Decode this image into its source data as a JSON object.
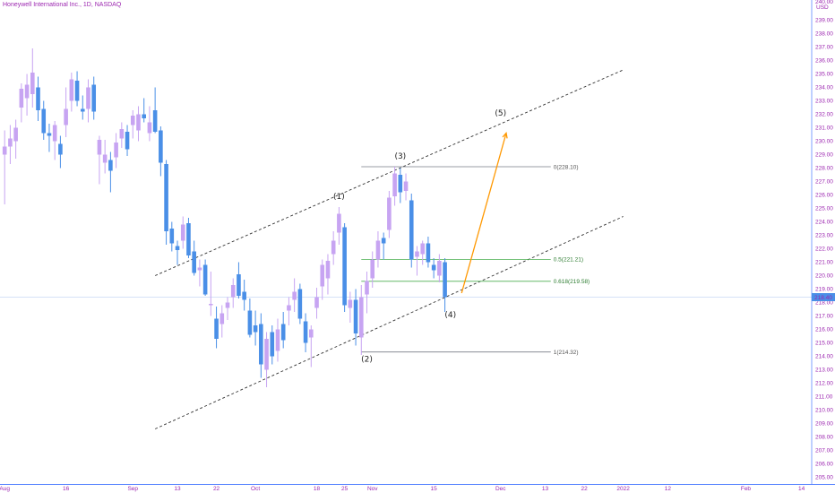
{
  "header": {
    "title": "Honeywell International Inc., 1D, NASDAQ"
  },
  "chart_data": {
    "type": "candlestick",
    "currency": "USD",
    "last_price": "218.40",
    "ylim": [
      204.5,
      240.5
    ],
    "y_ticks": [
      205,
      206,
      207,
      208,
      209,
      210,
      211,
      212,
      213,
      214,
      215,
      216,
      217,
      218,
      219,
      220,
      221,
      222,
      223,
      224,
      225,
      226,
      227,
      228,
      229,
      230,
      231,
      232,
      233,
      234,
      235,
      236,
      237,
      238,
      239
    ],
    "y_tick_labels": [
      "205.00",
      "206.00",
      "207.00",
      "208.00",
      "209.00",
      "210.00",
      "211.00",
      "212.00",
      "213.00",
      "214.00",
      "215.00",
      "216.00",
      "217.00",
      "218.00",
      "219.00",
      "220.00",
      "221.00",
      "222.00",
      "223.00",
      "224.00",
      "225.00",
      "226.00",
      "227.00",
      "228.00",
      "229.00",
      "230.00",
      "231.00",
      "232.00",
      "233.00",
      "234.00",
      "235.00",
      "236.00",
      "237.00",
      "238.00",
      "239.00"
    ],
    "top_partial_label": "240.00",
    "x_labels": [
      {
        "label": "Aug",
        "x": 0
      },
      {
        "label": "16",
        "x": 11
      },
      {
        "label": "Sep",
        "x": 23
      },
      {
        "label": "13",
        "x": 31
      },
      {
        "label": "22",
        "x": 38
      },
      {
        "label": "Oct",
        "x": 45
      },
      {
        "label": "18",
        "x": 56
      },
      {
        "label": "25",
        "x": 61
      },
      {
        "label": "Nov",
        "x": 66
      },
      {
        "label": "15",
        "x": 77
      },
      {
        "label": "Dec",
        "x": 89
      },
      {
        "label": "13",
        "x": 97
      },
      {
        "label": "22",
        "x": 104
      },
      {
        "label": "2022",
        "x": 111
      },
      {
        "label": "12",
        "x": 119
      },
      {
        "label": "Feb",
        "x": 133
      },
      {
        "label": "14",
        "x": 143
      },
      {
        "label": "Mar",
        "x": 154
      }
    ],
    "candles": [
      {
        "x": 0,
        "o": 229.0,
        "h": 230.8,
        "l": 225.3,
        "c": 229.6
      },
      {
        "x": 1,
        "o": 229.6,
        "h": 231.2,
        "l": 228.3,
        "c": 230.2
      },
      {
        "x": 2,
        "o": 230.0,
        "h": 231.6,
        "l": 228.7,
        "c": 231.0
      },
      {
        "x": 3,
        "o": 232.5,
        "h": 234.3,
        "l": 231.4,
        "c": 233.9
      },
      {
        "x": 4,
        "o": 233.2,
        "h": 235.0,
        "l": 231.9,
        "c": 234.2
      },
      {
        "x": 5,
        "o": 233.5,
        "h": 236.9,
        "l": 232.5,
        "c": 235.1
      },
      {
        "x": 6,
        "o": 234.0,
        "h": 234.8,
        "l": 231.5,
        "c": 232.3
      },
      {
        "x": 7,
        "o": 232.4,
        "h": 233.0,
        "l": 230.1,
        "c": 230.6
      },
      {
        "x": 8,
        "o": 230.6,
        "h": 231.3,
        "l": 229.2,
        "c": 230.4
      },
      {
        "x": 9,
        "o": 230.0,
        "h": 231.5,
        "l": 228.6,
        "c": 231.2
      },
      {
        "x": 10,
        "o": 229.8,
        "h": 230.4,
        "l": 228.0,
        "c": 229.0
      },
      {
        "x": 11,
        "o": 231.2,
        "h": 234.0,
        "l": 230.3,
        "c": 232.4
      },
      {
        "x": 12,
        "o": 233.0,
        "h": 235.1,
        "l": 232.2,
        "c": 234.6
      },
      {
        "x": 13,
        "o": 234.5,
        "h": 235.2,
        "l": 232.6,
        "c": 233.0
      },
      {
        "x": 14,
        "o": 232.4,
        "h": 233.4,
        "l": 231.6,
        "c": 232.2
      },
      {
        "x": 15,
        "o": 232.4,
        "h": 234.6,
        "l": 231.4,
        "c": 234.0
      },
      {
        "x": 16,
        "o": 234.2,
        "h": 234.8,
        "l": 231.6,
        "c": 232.2
      },
      {
        "x": 17,
        "o": 229.0,
        "h": 230.4,
        "l": 226.8,
        "c": 230.1
      },
      {
        "x": 18,
        "o": 228.4,
        "h": 230.1,
        "l": 227.6,
        "c": 229.0
      },
      {
        "x": 19,
        "o": 228.6,
        "h": 229.2,
        "l": 226.2,
        "c": 227.8
      },
      {
        "x": 20,
        "o": 228.8,
        "h": 230.6,
        "l": 228.0,
        "c": 229.9
      },
      {
        "x": 21,
        "o": 230.2,
        "h": 231.4,
        "l": 229.5,
        "c": 230.9
      },
      {
        "x": 22,
        "o": 230.7,
        "h": 231.2,
        "l": 228.9,
        "c": 229.4
      },
      {
        "x": 23,
        "o": 231.2,
        "h": 232.3,
        "l": 230.2,
        "c": 231.9
      },
      {
        "x": 24,
        "o": 230.8,
        "h": 232.6,
        "l": 230.0,
        "c": 232.0
      },
      {
        "x": 25,
        "o": 232.0,
        "h": 233.2,
        "l": 231.4,
        "c": 231.7
      },
      {
        "x": 26,
        "o": 230.6,
        "h": 232.6,
        "l": 230.0,
        "c": 231.4
      },
      {
        "x": 27,
        "o": 232.3,
        "h": 234.0,
        "l": 230.6,
        "c": 230.7
      },
      {
        "x": 28,
        "o": 230.8,
        "h": 231.1,
        "l": 227.4,
        "c": 228.4
      },
      {
        "x": 29,
        "o": 228.3,
        "h": 228.6,
        "l": 222.3,
        "c": 223.3
      },
      {
        "x": 30,
        "o": 223.5,
        "h": 224.0,
        "l": 221.8,
        "c": 222.4
      },
      {
        "x": 31,
        "o": 222.2,
        "h": 222.6,
        "l": 220.8,
        "c": 221.9
      },
      {
        "x": 32,
        "o": 222.6,
        "h": 224.4,
        "l": 222.0,
        "c": 223.8
      },
      {
        "x": 33,
        "o": 223.9,
        "h": 224.3,
        "l": 221.3,
        "c": 221.5
      },
      {
        "x": 34,
        "o": 221.8,
        "h": 222.6,
        "l": 220.0,
        "c": 220.2
      },
      {
        "x": 35,
        "o": 220.4,
        "h": 221.2,
        "l": 219.2,
        "c": 220.6
      },
      {
        "x": 36,
        "o": 220.8,
        "h": 221.2,
        "l": 218.5,
        "c": 218.6
      },
      {
        "x": 37,
        "o": 217.8,
        "h": 220.3,
        "l": 217.0,
        "c": 217.9
      },
      {
        "x": 38,
        "o": 216.8,
        "h": 217.7,
        "l": 214.6,
        "c": 215.3
      },
      {
        "x": 39,
        "o": 216.4,
        "h": 217.8,
        "l": 215.4,
        "c": 217.2
      },
      {
        "x": 40,
        "o": 217.6,
        "h": 218.4,
        "l": 216.7,
        "c": 218.0
      },
      {
        "x": 41,
        "o": 218.4,
        "h": 219.8,
        "l": 217.6,
        "c": 219.3
      },
      {
        "x": 42,
        "o": 220.1,
        "h": 221.0,
        "l": 218.3,
        "c": 218.5
      },
      {
        "x": 43,
        "o": 218.8,
        "h": 219.7,
        "l": 217.4,
        "c": 218.2
      },
      {
        "x": 44,
        "o": 217.4,
        "h": 218.3,
        "l": 215.4,
        "c": 215.6
      },
      {
        "x": 45,
        "o": 216.3,
        "h": 217.4,
        "l": 214.8,
        "c": 215.8
      },
      {
        "x": 46,
        "o": 216.4,
        "h": 217.2,
        "l": 212.4,
        "c": 213.4
      },
      {
        "x": 47,
        "o": 213.0,
        "h": 215.8,
        "l": 211.7,
        "c": 215.3
      },
      {
        "x": 48,
        "o": 215.8,
        "h": 216.3,
        "l": 213.4,
        "c": 214.0
      },
      {
        "x": 49,
        "o": 214.4,
        "h": 216.8,
        "l": 213.6,
        "c": 216.0
      },
      {
        "x": 50,
        "o": 216.4,
        "h": 217.3,
        "l": 214.6,
        "c": 215.2
      },
      {
        "x": 51,
        "o": 217.4,
        "h": 218.4,
        "l": 216.3,
        "c": 217.8
      },
      {
        "x": 52,
        "o": 218.2,
        "h": 219.8,
        "l": 217.3,
        "c": 218.8
      },
      {
        "x": 53,
        "o": 219.0,
        "h": 219.4,
        "l": 216.4,
        "c": 216.8
      },
      {
        "x": 54,
        "o": 216.6,
        "h": 217.2,
        "l": 214.3,
        "c": 215.0
      },
      {
        "x": 55,
        "o": 215.4,
        "h": 216.3,
        "l": 213.2,
        "c": 216.0
      },
      {
        "x": 56,
        "o": 217.6,
        "h": 219.1,
        "l": 216.8,
        "c": 218.4
      },
      {
        "x": 57,
        "o": 219.2,
        "h": 221.2,
        "l": 218.2,
        "c": 220.8
      },
      {
        "x": 58,
        "o": 219.8,
        "h": 221.6,
        "l": 218.6,
        "c": 221.1
      },
      {
        "x": 59,
        "o": 221.6,
        "h": 223.3,
        "l": 220.8,
        "c": 222.6
      },
      {
        "x": 60,
        "o": 223.2,
        "h": 225.1,
        "l": 222.3,
        "c": 224.6
      },
      {
        "x": 61,
        "o": 223.6,
        "h": 223.9,
        "l": 217.3,
        "c": 217.8
      },
      {
        "x": 62,
        "o": 217.6,
        "h": 218.8,
        "l": 216.5,
        "c": 218.2
      },
      {
        "x": 63,
        "o": 218.2,
        "h": 219.0,
        "l": 214.8,
        "c": 215.7
      },
      {
        "x": 64,
        "o": 215.4,
        "h": 219.3,
        "l": 214.1,
        "c": 218.4
      },
      {
        "x": 65,
        "o": 218.6,
        "h": 220.3,
        "l": 217.2,
        "c": 219.6
      },
      {
        "x": 66,
        "o": 219.8,
        "h": 221.8,
        "l": 219.1,
        "c": 221.2
      },
      {
        "x": 67,
        "o": 221.2,
        "h": 223.3,
        "l": 220.6,
        "c": 222.6
      },
      {
        "x": 68,
        "o": 222.8,
        "h": 223.2,
        "l": 221.2,
        "c": 222.4
      },
      {
        "x": 69,
        "o": 223.4,
        "h": 226.3,
        "l": 222.8,
        "c": 225.8
      },
      {
        "x": 70,
        "o": 225.9,
        "h": 228.1,
        "l": 225.2,
        "c": 227.6
      },
      {
        "x": 71,
        "o": 227.5,
        "h": 228.0,
        "l": 225.4,
        "c": 226.2
      },
      {
        "x": 72,
        "o": 226.3,
        "h": 227.6,
        "l": 225.6,
        "c": 227.0
      },
      {
        "x": 73,
        "o": 225.6,
        "h": 226.1,
        "l": 220.6,
        "c": 221.2
      },
      {
        "x": 74,
        "o": 221.4,
        "h": 222.2,
        "l": 220.0,
        "c": 221.8
      },
      {
        "x": 75,
        "o": 221.6,
        "h": 222.6,
        "l": 220.8,
        "c": 222.4
      },
      {
        "x": 76,
        "o": 222.4,
        "h": 222.9,
        "l": 220.6,
        "c": 221.0
      },
      {
        "x": 77,
        "o": 220.8,
        "h": 221.3,
        "l": 219.8,
        "c": 220.4
      },
      {
        "x": 78,
        "o": 220.0,
        "h": 221.6,
        "l": 219.5,
        "c": 221.1
      },
      {
        "x": 79,
        "o": 221.0,
        "h": 221.3,
        "l": 217.3,
        "c": 218.4
      }
    ],
    "channel_upper": [
      {
        "x": 27,
        "y": 220.0
      },
      {
        "x": 111,
        "y": 235.3
      }
    ],
    "channel_lower": [
      {
        "x": 27,
        "y": 208.6
      },
      {
        "x": 111,
        "y": 224.4
      }
    ],
    "projection": {
      "from": {
        "x": 82,
        "y": 218.7
      },
      "to": {
        "x": 90,
        "y": 230.6
      }
    },
    "last_price_line": 218.4,
    "fib_levels": [
      {
        "label": "0(228.10)",
        "value": 228.1,
        "color": "#787b86",
        "x1": 64,
        "x2": 98
      },
      {
        "label": "0.5(221.21)",
        "value": 221.21,
        "color": "#4caf50",
        "x1": 64,
        "x2": 98
      },
      {
        "label": "0.618(219.58)",
        "value": 219.58,
        "color": "#4caf50",
        "x1": 64,
        "x2": 98
      },
      {
        "label": "1(214.32)",
        "value": 214.32,
        "color": "#787b86",
        "x1": 64,
        "x2": 98
      }
    ],
    "wave_labels": [
      {
        "label": "(1)",
        "x": 60,
        "y": 225.7
      },
      {
        "label": "(2)",
        "x": 65,
        "y": 213.6
      },
      {
        "label": "(3)",
        "x": 71,
        "y": 228.7
      },
      {
        "label": "(4)",
        "x": 80,
        "y": 216.9
      },
      {
        "label": "(5)",
        "x": 89,
        "y": 231.9
      }
    ],
    "colors": {
      "up": "#c7a4f2",
      "down": "#4a8fe7",
      "axis_text": "#9c27b0",
      "price_tag_bg": "#4a8fe7",
      "channel": "#333333",
      "projection": "#ff9800"
    },
    "grid": false
  }
}
